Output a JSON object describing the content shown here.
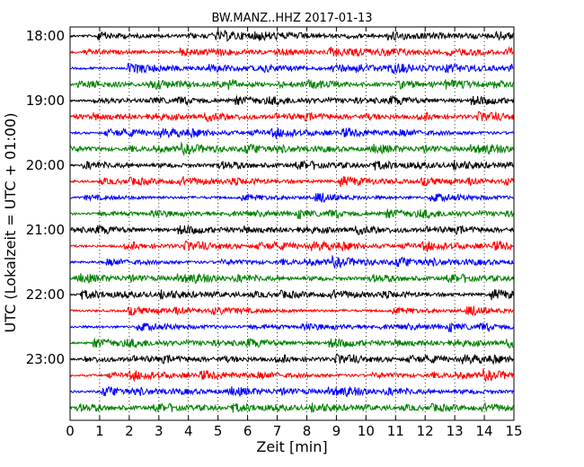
{
  "chart_data": {
    "type": "line",
    "title": "BW.MANZ..HHZ 2017-01-13",
    "xlabel": "Zeit  [min]",
    "ylabel": "UTC (Lokalzeit = UTC + 01:00)",
    "xlim": [
      0,
      15
    ],
    "x_ticks": [
      "0",
      "1",
      "2",
      "3",
      "4",
      "5",
      "6",
      "7",
      "8",
      "9",
      "10",
      "11",
      "12",
      "13",
      "14",
      "15"
    ],
    "y_tick_labels": [
      "18:00",
      "19:00",
      "20:00",
      "21:00",
      "22:00",
      "23:00"
    ],
    "grid": "vertical-dotted",
    "trace_interval_minutes": 15,
    "trace_colors": [
      "#000000",
      "#ff0000",
      "#0000ff",
      "#008000"
    ],
    "traces": [
      {
        "start": "18:00"
      },
      {
        "start": "18:15"
      },
      {
        "start": "18:30"
      },
      {
        "start": "18:45"
      },
      {
        "start": "19:00"
      },
      {
        "start": "19:15"
      },
      {
        "start": "19:30"
      },
      {
        "start": "19:45"
      },
      {
        "start": "20:00"
      },
      {
        "start": "20:15"
      },
      {
        "start": "20:30"
      },
      {
        "start": "20:45"
      },
      {
        "start": "21:00"
      },
      {
        "start": "21:15"
      },
      {
        "start": "21:30"
      },
      {
        "start": "21:45"
      },
      {
        "start": "22:00"
      },
      {
        "start": "22:15"
      },
      {
        "start": "22:30"
      },
      {
        "start": "22:45"
      },
      {
        "start": "23:00"
      },
      {
        "start": "23:15"
      },
      {
        "start": "23:30"
      },
      {
        "start": "23:45"
      }
    ]
  }
}
